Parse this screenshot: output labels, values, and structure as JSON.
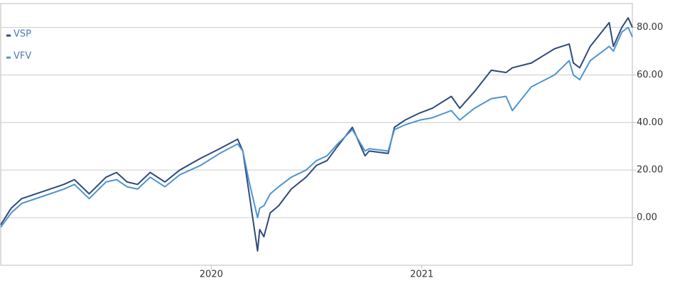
{
  "chart_data": {
    "type": "line",
    "x": [
      2019.0,
      2019.05,
      2019.1,
      2019.2,
      2019.3,
      2019.35,
      2019.42,
      2019.5,
      2019.55,
      2019.6,
      2019.65,
      2019.71,
      2019.78,
      2019.85,
      2019.95,
      2020.04,
      2020.125,
      2020.15,
      2020.18,
      2020.22,
      2020.23,
      2020.25,
      2020.28,
      2020.32,
      2020.38,
      2020.45,
      2020.5,
      2020.55,
      2020.6,
      2020.67,
      2020.73,
      2020.75,
      2020.84,
      2020.87,
      2020.92,
      2020.99,
      2021.05,
      2021.14,
      2021.18,
      2021.25,
      2021.33,
      2021.4,
      2021.43,
      2021.52,
      2021.63,
      2021.7,
      2021.72,
      2021.75,
      2021.8,
      2021.89,
      2021.91,
      2021.95,
      2021.98,
      2022.0
    ],
    "series": [
      {
        "name": "VSP",
        "color": "#2e4a7d",
        "values": [
          -3,
          4,
          8,
          11,
          14,
          16,
          10,
          17,
          19,
          15,
          14,
          19,
          15,
          20,
          25,
          29,
          33,
          28,
          10,
          -14,
          -5,
          -8,
          2,
          5,
          12,
          17,
          22,
          24,
          30,
          38,
          26,
          28,
          27,
          38,
          41,
          44,
          46,
          51,
          46,
          53,
          62,
          61,
          63,
          65,
          71,
          73,
          65,
          63,
          72,
          82,
          72,
          80,
          84,
          80
        ]
      },
      {
        "name": "VFV",
        "color": "#4f94cf",
        "values": [
          -4,
          2,
          6,
          9,
          12,
          14,
          8,
          15,
          16,
          13,
          12,
          17,
          13,
          18,
          22,
          27,
          31,
          28,
          15,
          0,
          4,
          5,
          10,
          13,
          17,
          20,
          24,
          26,
          31,
          37,
          28,
          29,
          28,
          37,
          39,
          41,
          42,
          45,
          41,
          46,
          50,
          51,
          45,
          55,
          60,
          66,
          60,
          58,
          66,
          72,
          70,
          78,
          80,
          76
        ]
      }
    ],
    "xlim": [
      2019.0,
      2022.0
    ],
    "xticks": [
      2020,
      2021
    ],
    "ylim": [
      -20,
      90
    ],
    "yticks": [
      {
        "value": 0,
        "label": "0.00"
      },
      {
        "value": 20,
        "label": "20.00"
      },
      {
        "value": 40,
        "label": "40.00"
      },
      {
        "value": 60,
        "label": "60.00"
      },
      {
        "value": 80,
        "label": "80.00"
      }
    ],
    "grid": true,
    "legend": "upper left"
  }
}
